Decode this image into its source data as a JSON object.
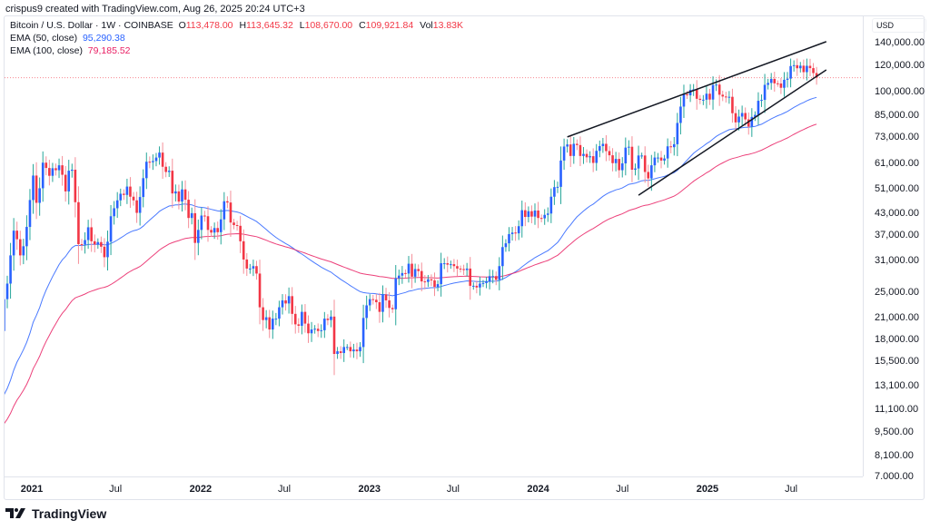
{
  "header": {
    "credit": "crispus9 created with TradingView.com, Aug 26, 2025 20:24 UTC+3"
  },
  "legend": {
    "symbol": "Bitcoin / U.S. Dollar · 1W · COINBASE",
    "o_label": "O",
    "o": "113,478.00",
    "h_label": "H",
    "h": "113,645.32",
    "l_label": "L",
    "l": "108,670.00",
    "c_label": "C",
    "c": "109,921.84",
    "vol_label": "Vol",
    "vol": "13.83K",
    "ema50_label": "EMA (50, close)",
    "ema50": "95,290.38",
    "ema100_label": "EMA (100, close)",
    "ema100": "79,185.52"
  },
  "footer": {
    "brand": "TradingView"
  },
  "colors": {
    "up_body": "#2962ff",
    "up_wick": "#26a69a",
    "down_body": "#f23645",
    "down_wick": "#f58f99",
    "ema50": "#2962ff",
    "ema100": "#e91e63",
    "trendline": "#131722",
    "price_line": "#f23645"
  },
  "chart_data": {
    "type": "candlestick",
    "title": "Bitcoin / U.S. Dollar · 1W · COINBASE",
    "interval": "1W",
    "scale": "log",
    "currency": "USD",
    "grid": false,
    "ylim": [
      6500,
      150000
    ],
    "last_week": "2025-08-25",
    "first_open": 15500,
    "weekly_close_thousands": [
      16,
      18.7,
      19.2,
      19.4,
      19.2,
      19.1,
      23.8,
      26.5,
      32.2,
      38.2,
      36,
      32.2,
      34.3,
      39.2,
      47.2,
      55.9,
      46.3,
      51.2,
      61.1,
      58.9,
      55.8,
      58.8,
      58,
      60,
      56.2,
      50.1,
      57.8,
      58.2,
      46.5,
      34.8,
      34.7,
      35.8,
      39.1,
      35.5,
      34.7,
      35.3,
      34.2,
      31.8,
      35.4,
      42.2,
      44.6,
      47.1,
      49.3,
      48.9,
      51.8,
      48.3,
      47.1,
      43.2,
      48.2,
      54.9,
      61.5,
      61.3,
      61.8,
      63.3,
      65.5,
      59.4,
      57.3,
      57.8,
      49.4,
      50.1,
      46.7,
      50.8,
      47.3,
      41.7,
      43.1,
      35.1,
      38.4,
      42.4,
      42.2,
      38.4,
      37.7,
      38.9,
      37.8,
      41.3,
      46.8,
      46.4,
      40.4,
      39.7,
      39.5,
      35.5,
      31.3,
      29.4,
      29.4,
      29.9,
      28.4,
      22.5,
      20.6,
      21,
      19.3,
      20.8,
      20.8,
      22.5,
      23.6,
      23.1,
      24.3,
      21.5,
      20,
      19.8,
      21.8,
      20.1,
      18.8,
      19.3,
      19.4,
      19.1,
      19.2,
      20.8,
      20.6,
      21.1,
      16.3,
      16.6,
      16.4,
      17.1,
      17.1,
      16.6,
      16.8,
      16.6,
      17.1,
      20.9,
      22.8,
      23.8,
      23.7,
      23.3,
      21.8,
      24.6,
      23.6,
      22.4,
      22.2,
      27.5,
      28,
      28.5,
      28.4,
      30.4,
      27.8,
      29.3,
      28.9,
      26.9,
      26.8,
      27.3,
      27.1,
      25.9,
      26.4,
      30.5,
      30.5,
      30.2,
      30.3,
      29.9,
      29.4,
      29.3,
      29.1,
      29.4,
      26.1,
      26.1,
      25.8,
      26.5,
      26.6,
      26.9,
      27.9,
      27.9,
      27.2,
      29.9,
      34.1,
      35,
      37.3,
      37.7,
      37.5,
      39.4,
      44,
      42,
      43.7,
      42.1,
      43.9,
      41.7,
      41.6,
      42.6,
      43,
      48.3,
      51.6,
      51.7,
      62,
      68.3,
      69.3,
      64,
      69.6,
      69,
      64,
      64.9,
      63.4,
      63.9,
      61,
      66.3,
      68.5,
      69.6,
      66.2,
      64.3,
      60.9,
      62.7,
      58,
      60.8,
      67.8,
      68.2,
      58.2,
      58.7,
      64.2,
      64.2,
      57.3,
      54.8,
      60,
      63.3,
      63.3,
      62,
      62.9,
      68.4,
      68,
      69.4,
      80.4,
      90,
      98,
      97.3,
      101,
      101.4,
      95,
      94.3,
      94.4,
      98.4,
      94.5,
      104.5,
      104.8,
      97.7,
      96.5,
      96.1,
      96.3,
      86,
      80.7,
      84,
      86.1,
      82.4,
      78.4,
      83.8,
      85,
      93.7,
      94.3,
      104.6,
      106,
      109,
      105.7,
      105.6,
      102.5,
      108.3,
      109.2,
      119.1,
      119.8,
      117.3,
      119.4,
      114.2,
      119.3,
      117.4,
      113.478,
      109.92184
    ],
    "series": [
      {
        "name": "EMA (50, close)",
        "period": 50,
        "start_value": 10200
      },
      {
        "name": "EMA (100, close)",
        "period": 100,
        "start_value": 8800
      }
    ],
    "trendlines": [
      {
        "from": [
          "2024-03-04",
          73000
        ],
        "to": [
          "2025-09-15",
          141000
        ]
      },
      {
        "from": [
          "2024-08-05",
          48800
        ],
        "to": [
          "2025-09-15",
          116000
        ]
      }
    ],
    "last_price": 109921.84,
    "y_ticks": [
      "140,000.00",
      "120,000.00",
      "100,000.00",
      "85,000.00",
      "73,000.00",
      "61,000.00",
      "51,000.00",
      "43,000.00",
      "37,000.00",
      "31,000.00",
      "25,000.00",
      "21,000.00",
      "18,000.00",
      "15,500.00",
      "13,100.00",
      "11,100.00",
      "9,500.00",
      "8,100.00",
      "7.000.00"
    ],
    "x_ticks": [
      {
        "label": "2021",
        "date": "2021-01-01",
        "year": true
      },
      {
        "label": "Jul",
        "date": "2021-07-01"
      },
      {
        "label": "2022",
        "date": "2022-01-01",
        "year": true
      },
      {
        "label": "Jul",
        "date": "2022-07-01"
      },
      {
        "label": "2023",
        "date": "2023-01-01",
        "year": true
      },
      {
        "label": "Jul",
        "date": "2023-07-01"
      },
      {
        "label": "2024",
        "date": "2024-01-01",
        "year": true
      },
      {
        "label": "Jul",
        "date": "2024-07-01"
      },
      {
        "label": "2025",
        "date": "2025-01-01",
        "year": true
      },
      {
        "label": "Jul",
        "date": "2025-07-01"
      }
    ]
  }
}
